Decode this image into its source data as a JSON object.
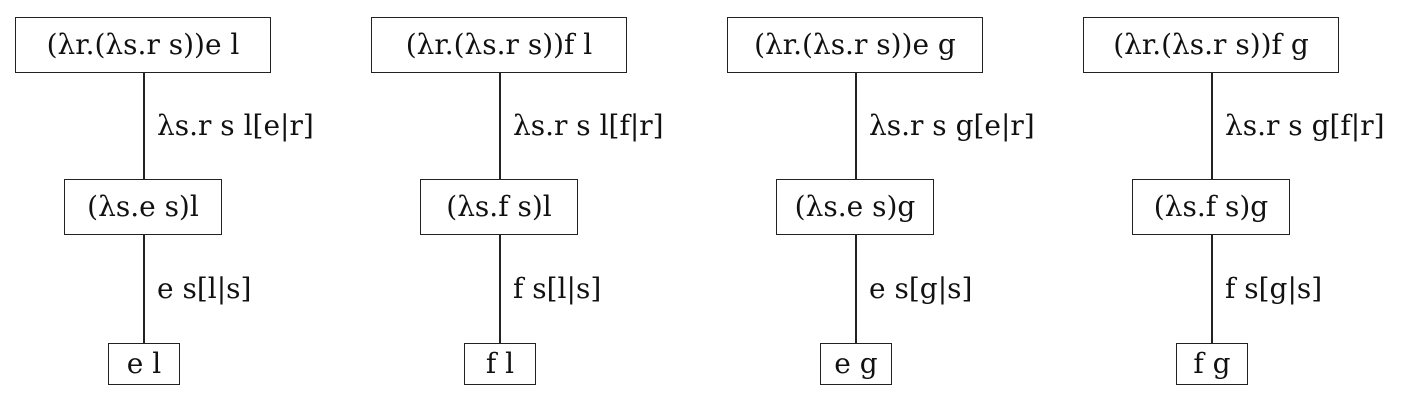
{
  "trees": [
    {
      "root": "(λr.(λs.r s))e l",
      "edge1": "λs.r s l[e|r]",
      "mid": "(λs.e s)l",
      "edge2": "e s[l|s]",
      "leaf": "e l"
    },
    {
      "root": "(λr.(λs.r s))f l",
      "edge1": "λs.r s l[f|r]",
      "mid": "(λs.f s)l",
      "edge2": "f s[l|s]",
      "leaf": "f l"
    },
    {
      "root": "(λr.(λs.r s))e g",
      "edge1": "λs.r s g[e|r]",
      "mid": "(λs.e s)g",
      "edge2": "e s[g|s]",
      "leaf": "e g"
    },
    {
      "root": "(λr.(λs.r s))f g",
      "edge1": "λs.r s g[f|r]",
      "mid": "(λs.f s)g",
      "edge2": "f s[g|s]",
      "leaf": "f g"
    }
  ]
}
